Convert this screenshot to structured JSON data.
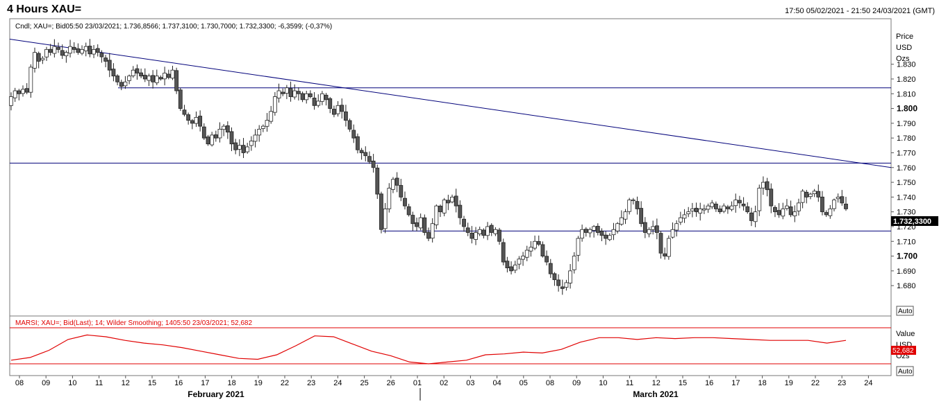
{
  "window": {
    "title": "4 Hours XAU=",
    "date_range": "17:50 05/02/2021 - 21:50 24/03/2021 (GMT)"
  },
  "price_panel": {
    "info": "Cndl; XAU=; Bid05:50 23/03/2021; 1.736,8566; 1.737,3100; 1.730,7000; 1.732,3300; -6,3599; (-0,37%)",
    "axis_header": [
      "Price",
      "USD",
      "Ozs"
    ],
    "last_price_label": "1.732,3300",
    "auto_label": "Auto"
  },
  "rsi_panel": {
    "info": "MARSI; XAU=; Bid(Last);  14; Wilder Smoothing; 1405:50 23/03/2021; 52,682",
    "axis_header": [
      "Value",
      "USD",
      "Ozs"
    ],
    "last_value_label": "52,682",
    "auto_label": "Auto"
  },
  "colors": {
    "bear_candle": "#555555",
    "bull_candle": "#ffffff",
    "trendline": "#00007a",
    "hline": "#00007a",
    "rsi_line": "#e00000",
    "rsi_bounds": "#e00000",
    "badge_price": "#000000",
    "badge_rsi": "#e00000"
  },
  "chart_data": [
    {
      "type": "candlestick",
      "ylabel": "Price USD Ozs",
      "ylim": [
        1672,
        1866
      ],
      "yticks": [
        {
          "v": 1830,
          "label": "1.830",
          "bold": false
        },
        {
          "v": 1820,
          "label": "1.820",
          "bold": false
        },
        {
          "v": 1810,
          "label": "1.810",
          "bold": false
        },
        {
          "v": 1800,
          "label": "1.800",
          "bold": true
        },
        {
          "v": 1790,
          "label": "1.790",
          "bold": false
        },
        {
          "v": 1780,
          "label": "1.780",
          "bold": false
        },
        {
          "v": 1770,
          "label": "1.770",
          "bold": false
        },
        {
          "v": 1760,
          "label": "1.760",
          "bold": false
        },
        {
          "v": 1750,
          "label": "1.750",
          "bold": false
        },
        {
          "v": 1740,
          "label": "1.740",
          "bold": false
        },
        {
          "v": 1730,
          "label": "1.730",
          "bold": false
        },
        {
          "v": 1720,
          "label": "1.720",
          "bold": false
        },
        {
          "v": 1710,
          "label": "1.710",
          "bold": false
        },
        {
          "v": 1700,
          "label": "1.700",
          "bold": true
        },
        {
          "v": 1690,
          "label": "1.690",
          "bold": false
        },
        {
          "v": 1680,
          "label": "1.680",
          "bold": false
        }
      ],
      "x_days": [
        "08",
        "09",
        "10",
        "11",
        "12",
        "15",
        "16",
        "17",
        "18",
        "19",
        "22",
        "23",
        "24",
        "25",
        "26",
        "01",
        "02",
        "03",
        "04",
        "05",
        "08",
        "09",
        "10",
        "11",
        "12",
        "15",
        "16",
        "17",
        "18",
        "19",
        "22",
        "23",
        "24"
      ],
      "x_months": [
        "February 2021",
        "March 2021"
      ],
      "trendline": {
        "from": [
          0,
          1847
        ],
        "to": [
          33,
          1760
        ]
      },
      "hlines": [
        1814,
        1763,
        1717
      ],
      "candles_per_day": 6,
      "closes": [
        1808,
        1812,
        1810,
        1813,
        1811,
        1828,
        1838,
        1832,
        1834,
        1840,
        1838,
        1842,
        1840,
        1836,
        1838,
        1842,
        1840,
        1838,
        1840,
        1842,
        1837,
        1840,
        1838,
        1835,
        1832,
        1826,
        1822,
        1818,
        1815,
        1818,
        1822,
        1826,
        1824,
        1822,
        1820,
        1822,
        1818,
        1822,
        1820,
        1824,
        1821,
        1826,
        1812,
        1800,
        1796,
        1792,
        1790,
        1794,
        1788,
        1780,
        1776,
        1782,
        1780,
        1786,
        1788,
        1784,
        1776,
        1772,
        1775,
        1770,
        1774,
        1778,
        1782,
        1786,
        1788,
        1792,
        1798,
        1808,
        1812,
        1810,
        1814,
        1808,
        1812,
        1810,
        1806,
        1810,
        1808,
        1802,
        1805,
        1810,
        1806,
        1800,
        1796,
        1802,
        1798,
        1792,
        1786,
        1780,
        1772,
        1770,
        1768,
        1764,
        1760,
        1742,
        1718,
        1732,
        1746,
        1752,
        1748,
        1740,
        1734,
        1728,
        1722,
        1720,
        1726,
        1716,
        1712,
        1722,
        1734,
        1730,
        1738,
        1736,
        1740,
        1734,
        1726,
        1720,
        1716,
        1712,
        1716,
        1718,
        1714,
        1720,
        1716,
        1718,
        1710,
        1696,
        1692,
        1690,
        1694,
        1698,
        1700,
        1704,
        1706,
        1710,
        1708,
        1700,
        1696,
        1688,
        1684,
        1680,
        1678,
        1682,
        1690,
        1700,
        1712,
        1718,
        1716,
        1718,
        1720,
        1716,
        1714,
        1712,
        1714,
        1718,
        1722,
        1726,
        1730,
        1738,
        1738,
        1732,
        1722,
        1716,
        1718,
        1720,
        1716,
        1702,
        1700,
        1712,
        1718,
        1722,
        1726,
        1728,
        1730,
        1732,
        1730,
        1732,
        1732,
        1734,
        1736,
        1732,
        1730,
        1734,
        1732,
        1734,
        1738,
        1736,
        1734,
        1730,
        1724,
        1730,
        1746,
        1750,
        1745,
        1734,
        1730,
        1728,
        1732,
        1734,
        1728,
        1730,
        1736,
        1744,
        1740,
        1742,
        1744,
        1740,
        1730,
        1728,
        1732,
        1738,
        1740,
        1736,
        1732
      ]
    },
    {
      "type": "line",
      "name": "MARSI",
      "ylim": [
        20,
        80
      ],
      "bounds": [
        70,
        30
      ],
      "values": [
        34,
        37,
        45,
        57,
        62,
        60,
        56,
        53,
        51,
        48,
        44,
        40,
        36,
        35,
        40,
        50,
        61,
        60,
        52,
        44,
        39,
        32,
        30,
        32,
        34,
        40,
        41,
        43,
        42,
        46,
        54,
        59,
        59,
        57,
        59,
        58,
        59,
        59,
        58,
        57,
        56,
        56,
        56,
        53,
        56
      ]
    }
  ]
}
